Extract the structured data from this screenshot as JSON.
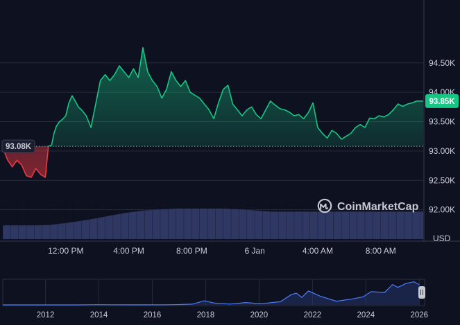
{
  "chart_data": {
    "type": "area",
    "brand": "CoinMarketCap",
    "currency_label": "USD",
    "baseline": 93.08,
    "current": 93.85,
    "baseline_label": "93.08K",
    "current_label": "93.85K",
    "y_ticks": [
      "92.00K",
      "92.50K",
      "93.00K",
      "93.50K",
      "94.00K",
      "94.50K"
    ],
    "y_tick_values": [
      92.0,
      92.5,
      93.0,
      93.5,
      94.0,
      94.5
    ],
    "ylim": [
      91.5,
      95.5
    ],
    "x_ticks": [
      "12:00 PM",
      "4:00 PM",
      "8:00 PM",
      "6 Jan",
      "4:00 AM",
      "8:00 AM"
    ],
    "x_tick_hours": [
      12,
      16,
      20,
      24,
      28,
      32
    ],
    "xlim_hours": [
      8,
      34.7
    ],
    "price": {
      "x_hours": [
        8.0,
        8.3,
        8.6,
        8.9,
        9.2,
        9.5,
        9.8,
        10.1,
        10.4,
        10.7,
        10.9,
        11.1,
        11.25,
        11.4,
        11.6,
        11.8,
        12.0,
        12.2,
        12.4,
        12.6,
        12.8,
        13.0,
        13.3,
        13.6,
        13.9,
        14.2,
        14.5,
        14.8,
        15.1,
        15.4,
        15.7,
        16.0,
        16.3,
        16.6,
        16.9,
        17.2,
        17.5,
        17.8,
        18.1,
        18.4,
        18.7,
        19.0,
        19.3,
        19.6,
        19.9,
        20.2,
        20.5,
        20.8,
        21.1,
        21.4,
        21.7,
        22.0,
        22.3,
        22.6,
        22.9,
        23.2,
        23.5,
        23.8,
        24.1,
        24.4,
        24.7,
        25.0,
        25.3,
        25.6,
        25.9,
        26.2,
        26.5,
        26.8,
        27.1,
        27.4,
        27.7,
        28.0,
        28.3,
        28.6,
        28.9,
        29.2,
        29.5,
        29.8,
        30.1,
        30.4,
        30.7,
        31.0,
        31.3,
        31.6,
        31.9,
        32.2,
        32.5,
        32.8,
        33.1,
        33.4,
        33.7,
        34.0,
        34.3,
        34.7
      ],
      "values": [
        93.06,
        92.85,
        92.73,
        92.84,
        92.76,
        92.58,
        92.55,
        92.7,
        92.6,
        92.55,
        93.08,
        93.1,
        93.3,
        93.42,
        93.5,
        93.54,
        93.6,
        93.82,
        93.94,
        93.85,
        93.75,
        93.7,
        93.6,
        93.4,
        93.8,
        94.2,
        94.3,
        94.2,
        94.3,
        94.45,
        94.35,
        94.25,
        94.4,
        94.25,
        94.76,
        94.35,
        94.2,
        94.1,
        93.9,
        94.05,
        94.35,
        94.2,
        94.1,
        94.2,
        94.0,
        93.95,
        93.9,
        93.8,
        93.7,
        93.55,
        93.82,
        94.05,
        94.12,
        93.8,
        93.7,
        93.6,
        93.7,
        93.75,
        93.62,
        93.55,
        93.7,
        93.85,
        93.78,
        93.72,
        93.7,
        93.66,
        93.6,
        93.62,
        93.55,
        93.65,
        93.82,
        93.4,
        93.3,
        93.22,
        93.35,
        93.3,
        93.2,
        93.25,
        93.3,
        93.4,
        93.45,
        93.4,
        93.56,
        93.55,
        93.6,
        93.58,
        93.62,
        93.7,
        93.8,
        93.76,
        93.8,
        93.82,
        93.85,
        93.85
      ]
    },
    "volume": {
      "x_hours": [
        8.0,
        9.0,
        10.0,
        11.0,
        12.0,
        13.0,
        14.0,
        15.0,
        16.0,
        17.0,
        18.0,
        19.0,
        20.0,
        21.0,
        22.0,
        23.0,
        24.0,
        25.0,
        26.0,
        27.0,
        28.0,
        29.0,
        30.0,
        31.0,
        32.0,
        33.0,
        34.0,
        34.7
      ],
      "relative": [
        0.36,
        0.36,
        0.36,
        0.37,
        0.42,
        0.48,
        0.55,
        0.63,
        0.7,
        0.75,
        0.78,
        0.8,
        0.8,
        0.8,
        0.8,
        0.78,
        0.75,
        0.72,
        0.72,
        0.72,
        0.72,
        0.72,
        0.72,
        0.72,
        0.72,
        0.72,
        0.72,
        0.72
      ]
    },
    "overview": {
      "x_ticks": [
        "2012",
        "2014",
        "2016",
        "2018",
        "2020",
        "2022",
        "2024",
        "2026"
      ],
      "x_tick_years": [
        2012,
        2014,
        2016,
        2018,
        2020,
        2022,
        2024,
        2026
      ],
      "xlim_years": [
        2010.4,
        2026.2
      ],
      "years": [
        2010.4,
        2012.0,
        2013.0,
        2013.9,
        2014.5,
        2015.5,
        2016.5,
        2017.0,
        2017.5,
        2017.95,
        2018.3,
        2018.9,
        2019.5,
        2019.9,
        2020.2,
        2020.8,
        2021.2,
        2021.4,
        2021.6,
        2021.85,
        2022.3,
        2022.9,
        2023.5,
        2023.9,
        2024.2,
        2024.7,
        2025.0,
        2025.2,
        2025.5,
        2025.8,
        2026.0
      ],
      "values": [
        0,
        0,
        0.15,
        1.0,
        0.5,
        0.3,
        0.7,
        1.5,
        3.5,
        19,
        9,
        4,
        11,
        7,
        7,
        15,
        48,
        55,
        35,
        65,
        40,
        17,
        28,
        38,
        62,
        58,
        95,
        82,
        100,
        108,
        94
      ]
    }
  }
}
